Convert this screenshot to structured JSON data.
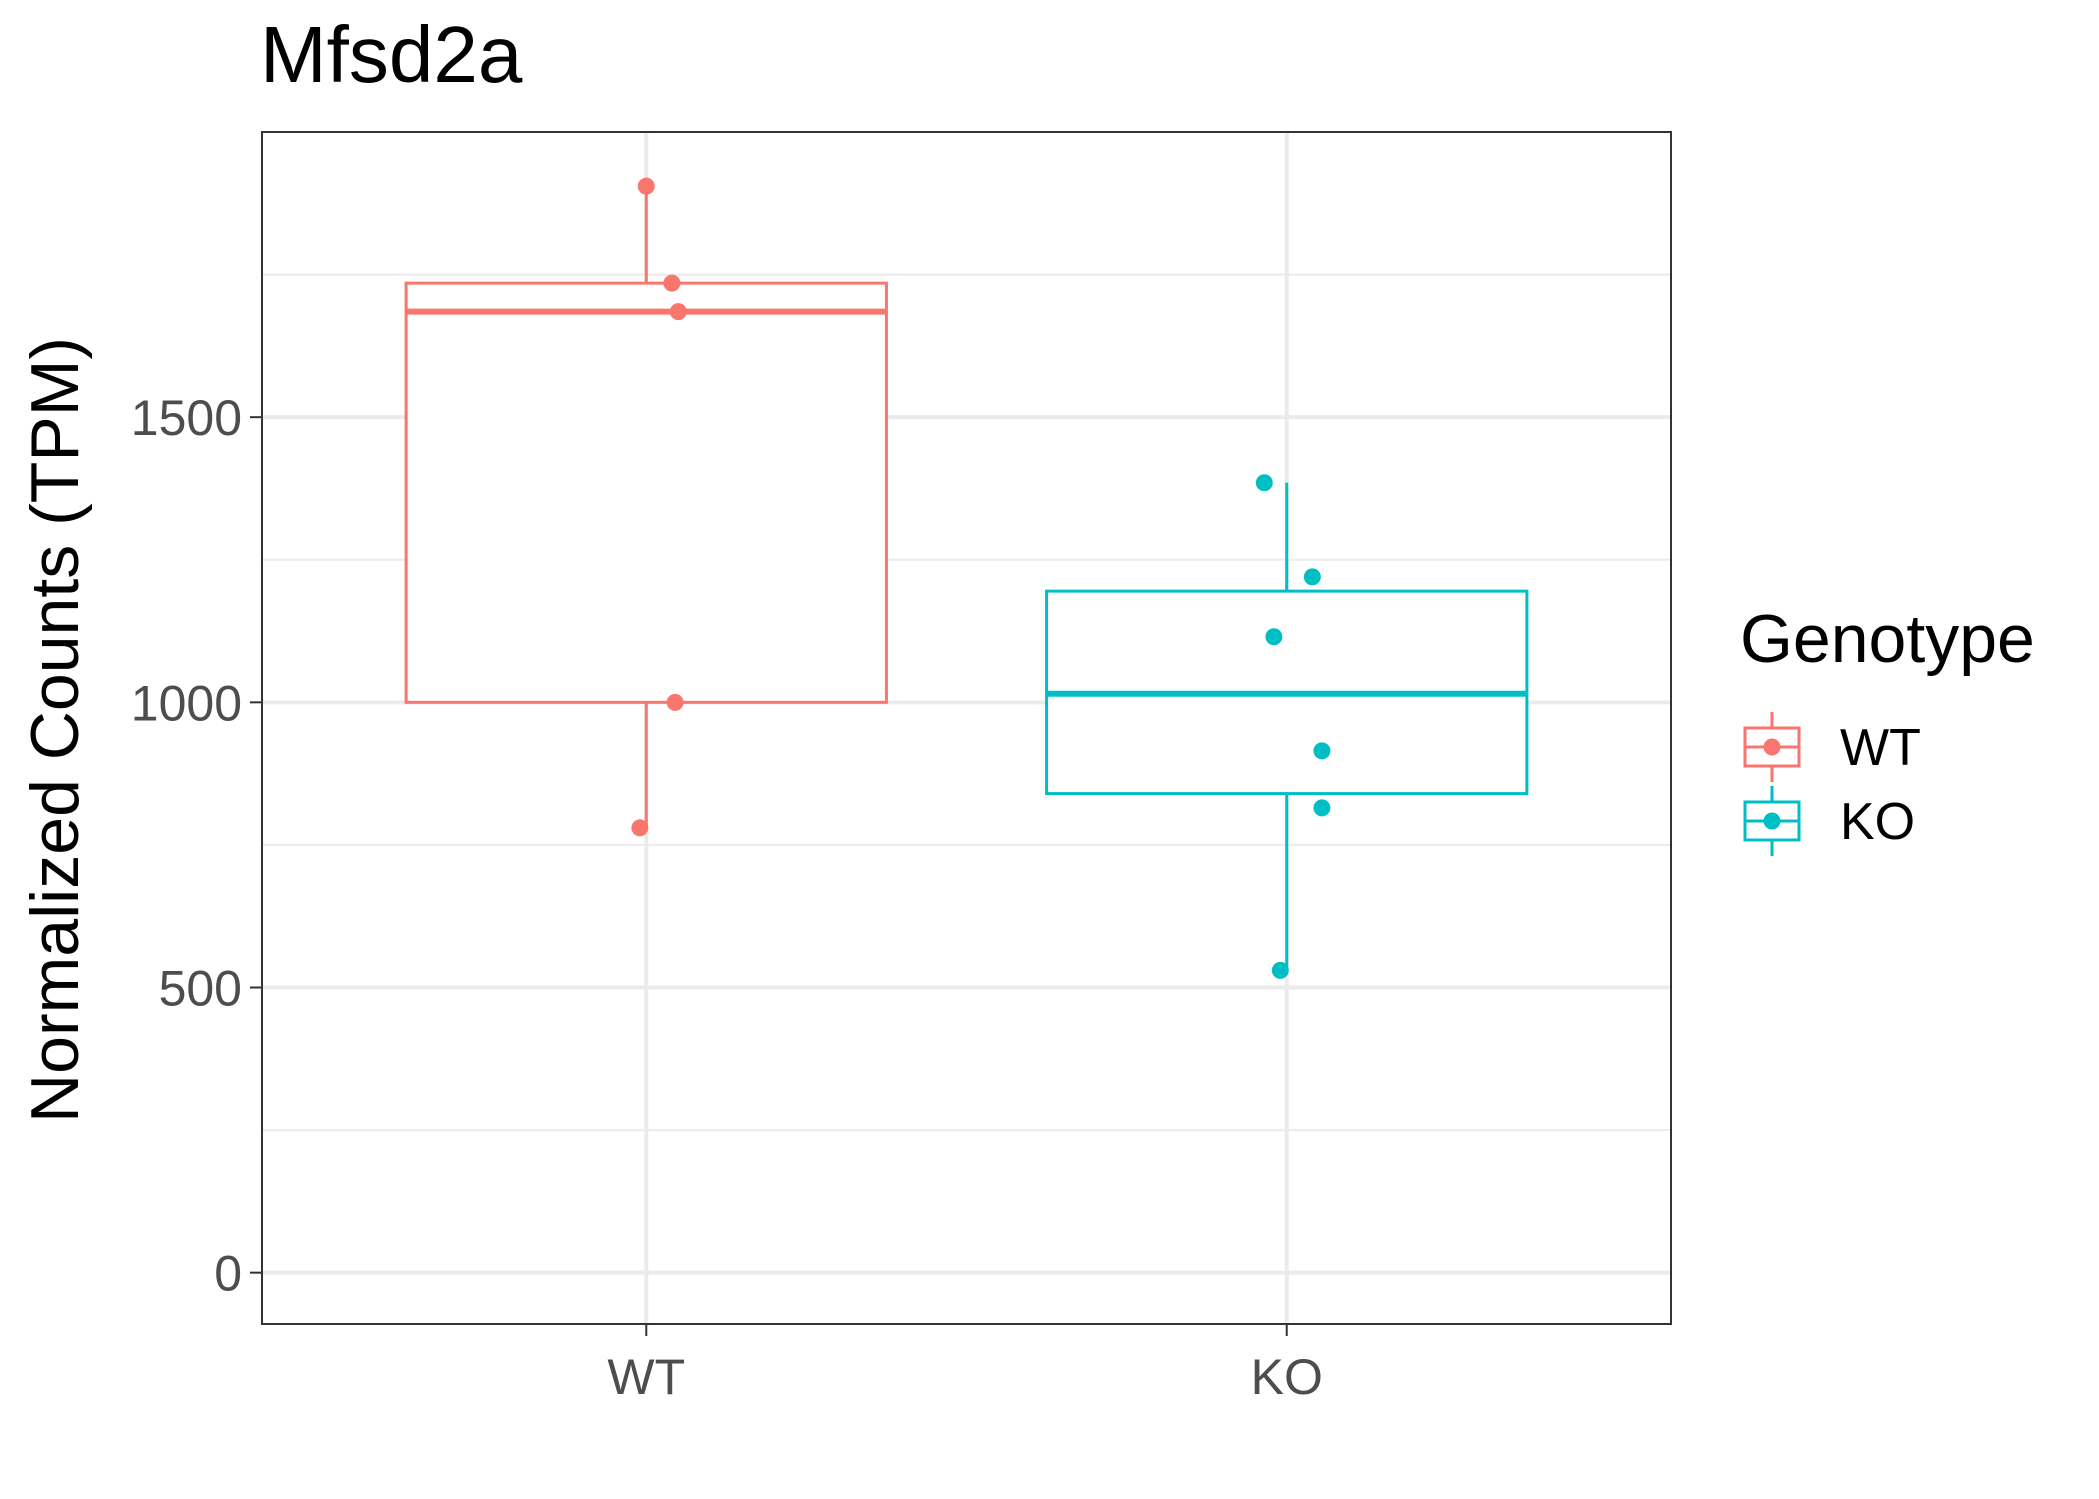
{
  "chart_data": {
    "type": "box",
    "title": "Mfsd2a",
    "xlabel": "",
    "ylabel": "Normalized Counts (TPM)",
    "categories": [
      "WT",
      "KO"
    ],
    "ylim": [
      -90,
      2000
    ],
    "yticks": [
      0,
      500,
      1000,
      1500
    ],
    "grid": true,
    "legend": {
      "title": "Genotype",
      "position": "right",
      "entries": [
        "WT",
        "KO"
      ]
    },
    "series": [
      {
        "name": "WT",
        "color": "#F8766D",
        "box": {
          "min": 780,
          "q1": 1000,
          "median": 1685,
          "q3": 1735,
          "max": 1905
        },
        "points": [
          {
            "x": 0.0,
            "y": 1905
          },
          {
            "x": 0.04,
            "y": 1735
          },
          {
            "x": 0.05,
            "y": 1685
          },
          {
            "x": 0.045,
            "y": 1000
          },
          {
            "x": -0.01,
            "y": 780
          }
        ]
      },
      {
        "name": "KO",
        "color": "#00BFC4",
        "box": {
          "min": 530,
          "q1": 840,
          "median": 1015,
          "q3": 1195,
          "max": 1385
        },
        "points": [
          {
            "x": -0.035,
            "y": 1385
          },
          {
            "x": 0.04,
            "y": 1220
          },
          {
            "x": -0.02,
            "y": 1115
          },
          {
            "x": 0.055,
            "y": 915
          },
          {
            "x": 0.055,
            "y": 815
          },
          {
            "x": -0.01,
            "y": 530
          }
        ]
      }
    ]
  }
}
